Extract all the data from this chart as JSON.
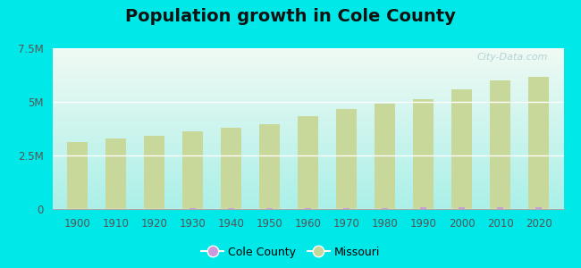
{
  "title": "Population growth in Cole County",
  "years": [
    1900,
    1910,
    1920,
    1930,
    1940,
    1950,
    1960,
    1970,
    1980,
    1990,
    2000,
    2010,
    2020
  ],
  "missouri_pop": [
    3106665,
    3293335,
    3404055,
    3629367,
    3784664,
    3954653,
    4319813,
    4677399,
    4916686,
    5117073,
    5595211,
    5988927,
    6154913
  ],
  "cole_county_pop": [
    17600,
    18900,
    20300,
    22800,
    25000,
    31000,
    40761,
    46228,
    56663,
    63579,
    71397,
    75990,
    76745
  ],
  "missouri_color": "#c8d89a",
  "cole_county_color": "#cc99dd",
  "background_outer": "#00e8e8",
  "title_fontsize": 14,
  "ylim": [
    0,
    7500000
  ],
  "yticks": [
    0,
    2500000,
    5000000,
    7500000
  ],
  "ytick_labels": [
    "0",
    "2.5M",
    "5M",
    "7.5M"
  ],
  "watermark": "City-Data.com",
  "legend_labels": [
    "Cole County",
    "Missouri"
  ],
  "bg_top_color": "#f0faf4",
  "bg_bottom_color": "#aaf0e8"
}
